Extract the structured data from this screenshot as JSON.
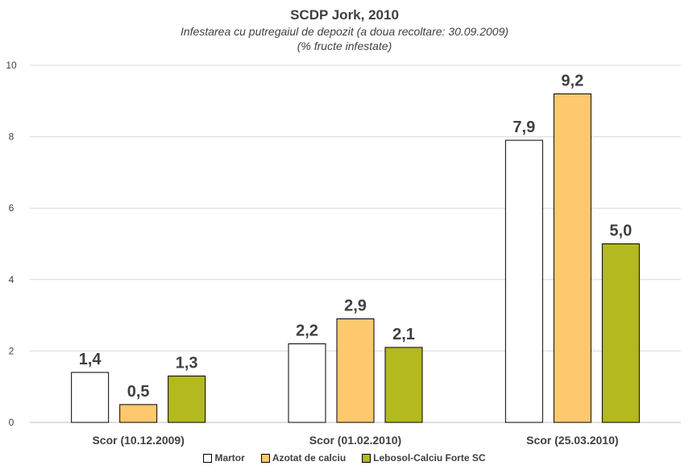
{
  "chart_data": {
    "type": "bar",
    "title": "SCDP Jork, 2010",
    "subtitle_line1": "Infestarea cu putregaiul de depozit (a doua recoltare: 30.09.2009)",
    "subtitle_line2": "(% fructe infestate)",
    "categories": [
      "Scor (10.12.2009)",
      "Scor (01.02.2010)",
      "Scor (25.03.2010)"
    ],
    "series": [
      {
        "name": "Martor",
        "color": "#ffffff",
        "values": [
          1.4,
          2.2,
          7.9
        ],
        "labels": [
          "1,4",
          "2,2",
          "7,9"
        ]
      },
      {
        "name": "Azotat de calciu",
        "color": "#fdc86e",
        "values": [
          0.5,
          2.9,
          9.2
        ],
        "labels": [
          "0,5",
          "2,9",
          "9,2"
        ]
      },
      {
        "name": "Lebosol-Calciu Forte SC",
        "color": "#b3b91e",
        "values": [
          1.3,
          2.1,
          5.0
        ],
        "labels": [
          "1,3",
          "2,1",
          "5,0"
        ]
      }
    ],
    "ylim": [
      0,
      10
    ],
    "yticks": [
      0,
      2,
      4,
      6,
      8,
      10
    ],
    "grid": true,
    "legend_position": "bottom",
    "xlabel": "",
    "ylabel": ""
  }
}
